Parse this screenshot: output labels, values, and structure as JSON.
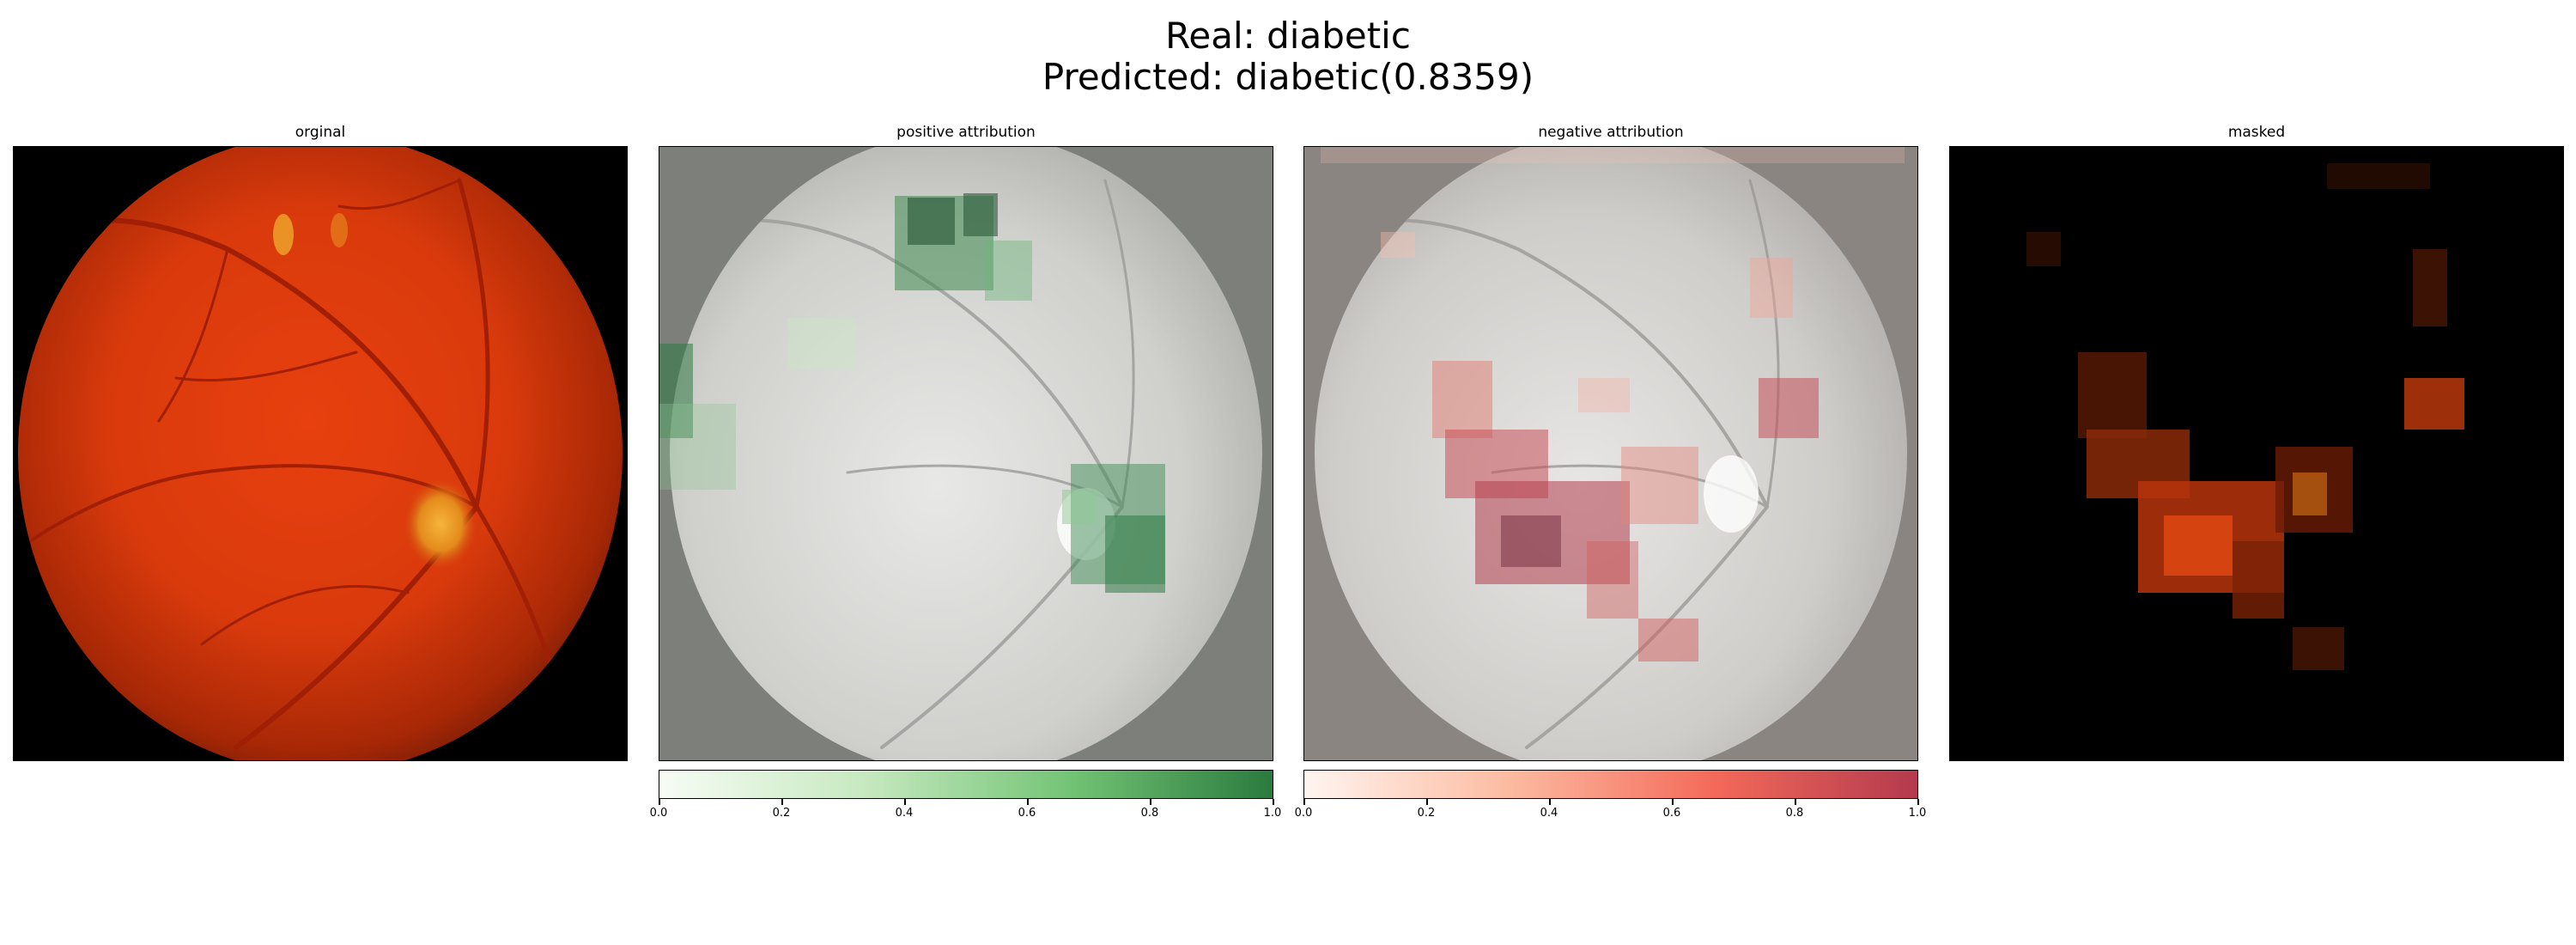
{
  "figure": {
    "title_line1": "Real: diabetic",
    "title_line2": "Predicted: diabetic(0.8359)"
  },
  "panels": [
    {
      "title": "orginal"
    },
    {
      "title": "positive attribution",
      "colormap": "Greens",
      "colors": [
        "#f7fcf5",
        "#c7e9c0",
        "#74c476",
        "#2a7a3e"
      ]
    },
    {
      "title": "negative attribution",
      "colormap": "Reds",
      "colors": [
        "#fff5f0",
        "#fcbba1",
        "#f46a5a",
        "#b33a4e"
      ]
    },
    {
      "title": "masked"
    }
  ],
  "colorbar_ticks": [
    "0.0",
    "0.2",
    "0.4",
    "0.6",
    "0.8",
    "1.0"
  ],
  "colorbar_tick_values": [
    0.0,
    0.2,
    0.4,
    0.6,
    0.8,
    1.0
  ]
}
